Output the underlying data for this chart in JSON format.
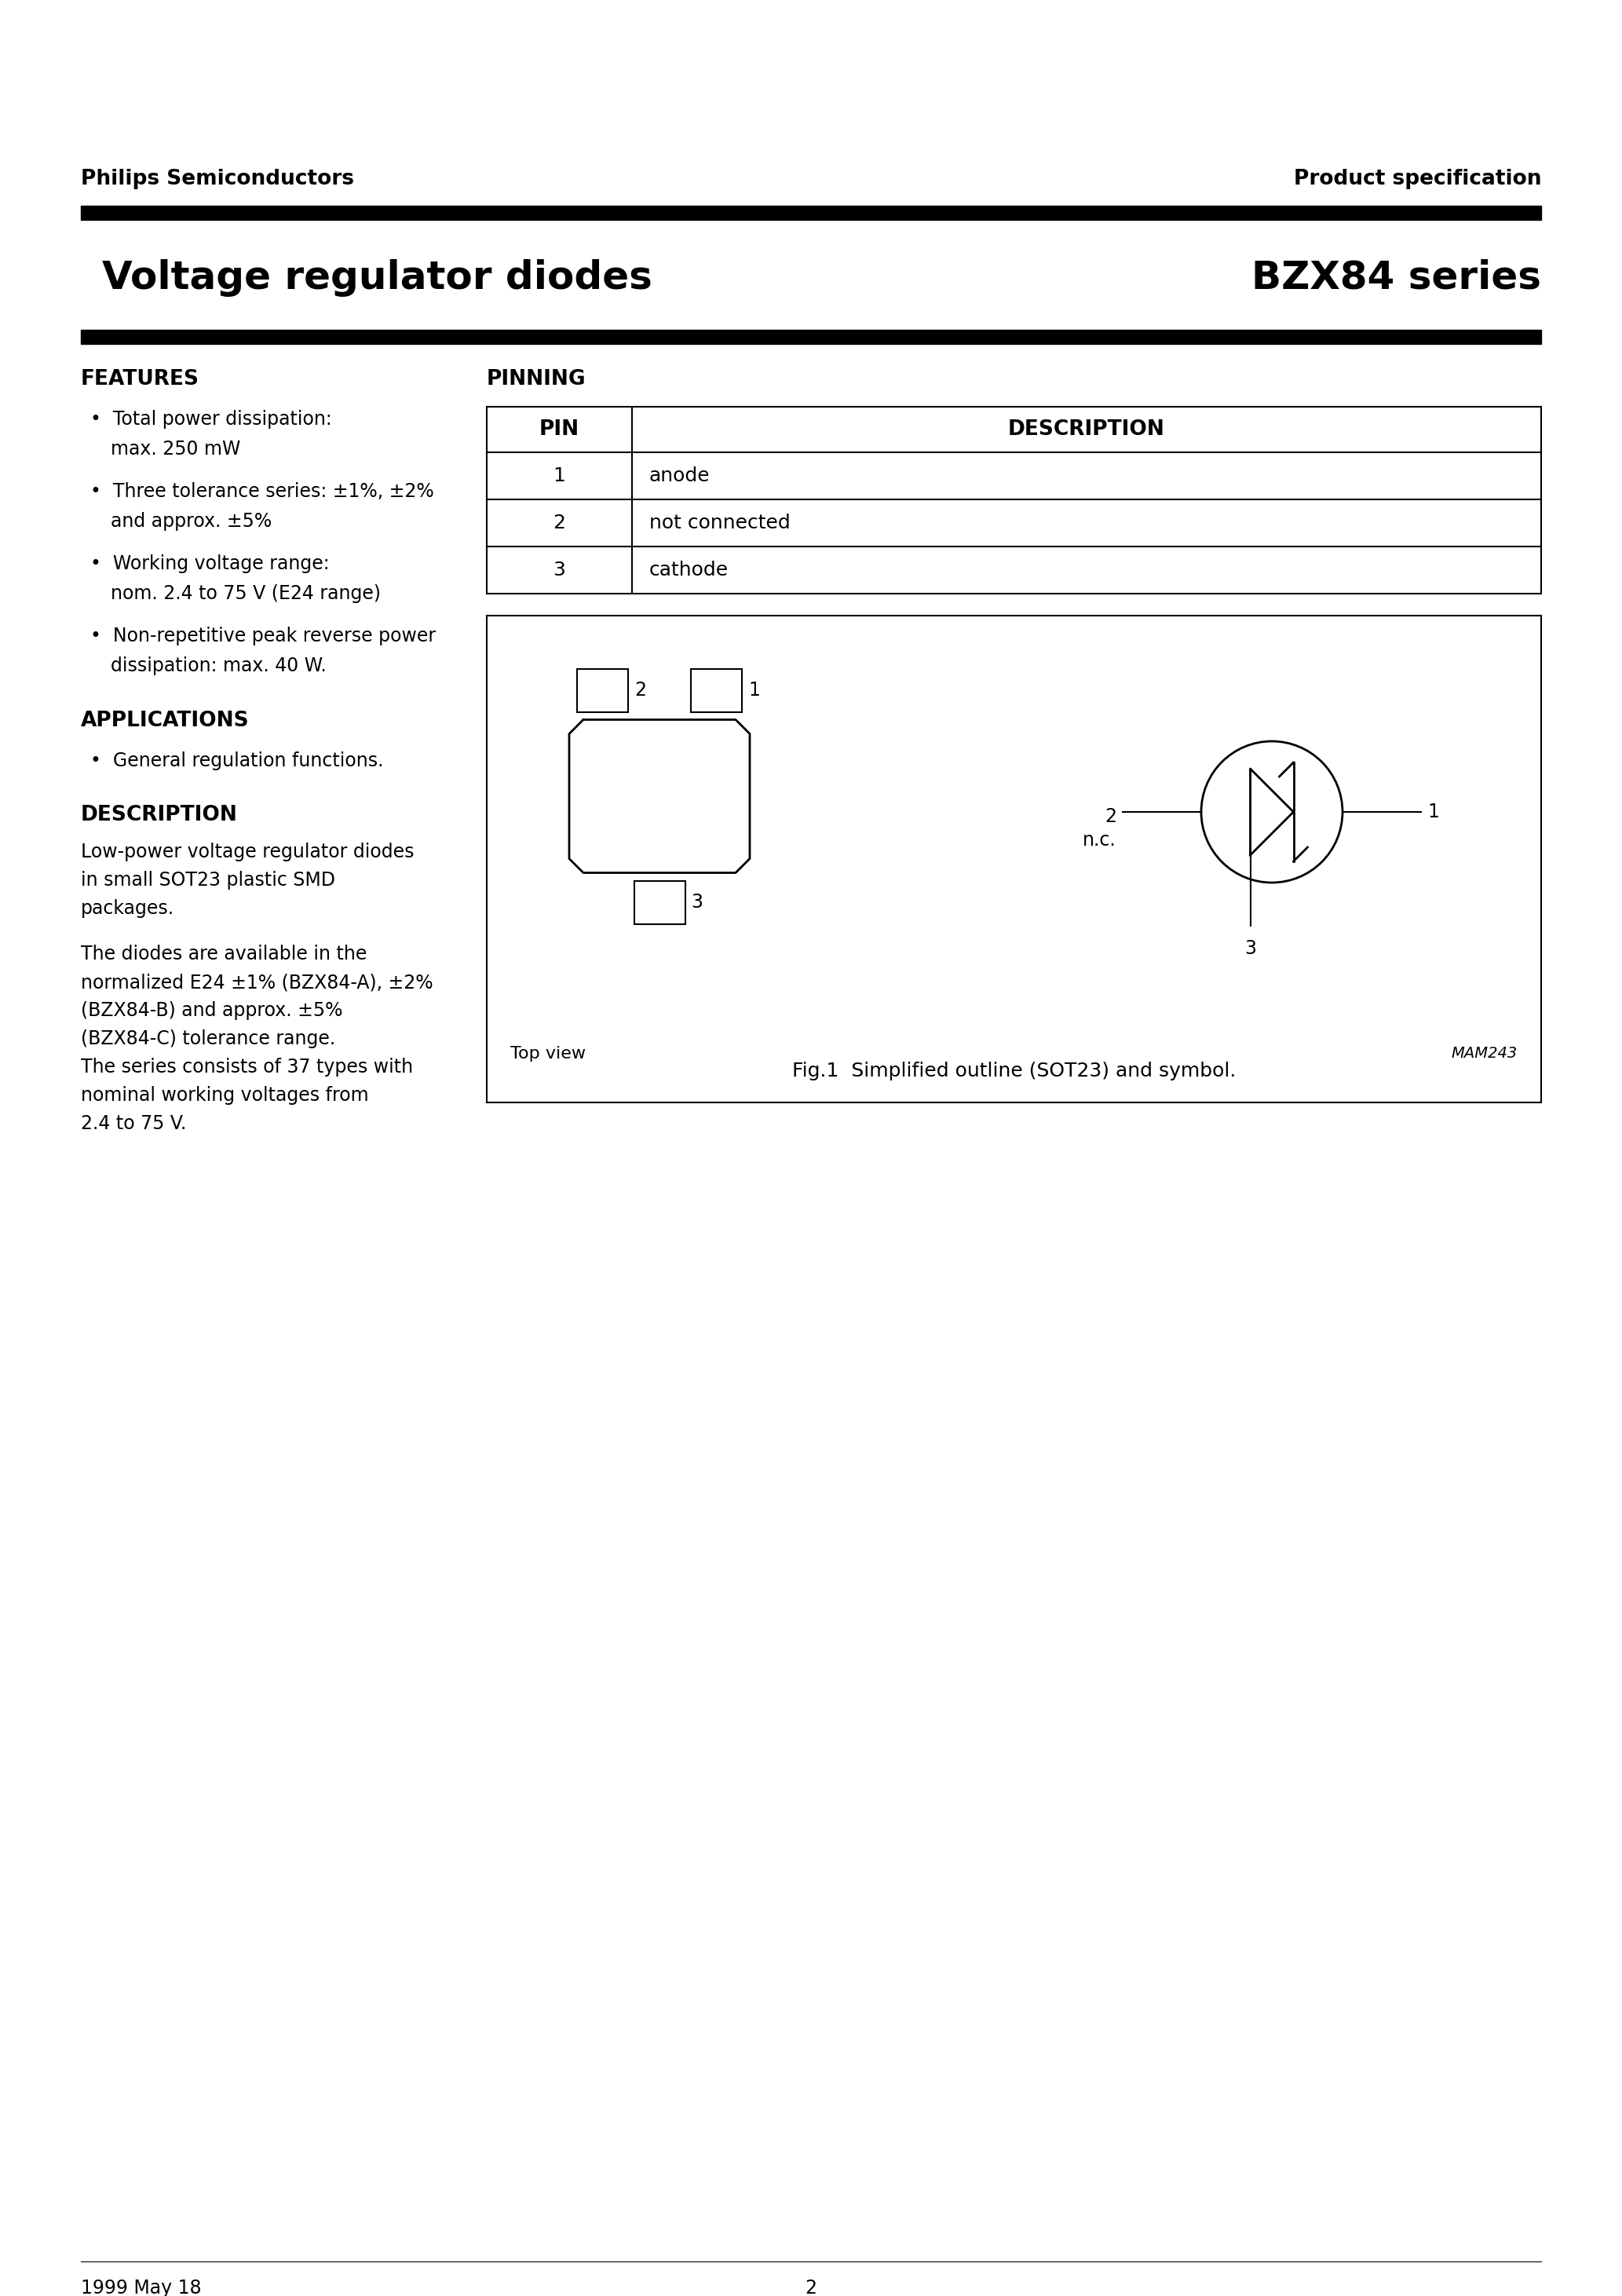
{
  "page_title_left": "Voltage regulator diodes",
  "page_title_right": "BZX84 series",
  "header_left": "Philips Semiconductors",
  "header_right": "Product specification",
  "features_title": "FEATURES",
  "features": [
    [
      "Total power dissipation:",
      "max. 250 mW"
    ],
    [
      "Three tolerance series: ±1%, ±2%",
      "and approx. ±5%"
    ],
    [
      "Working voltage range:",
      "nom. 2.4 to 75 V (E24 range)"
    ],
    [
      "Non-repetitive peak reverse power",
      "dissipation: max. 40 W."
    ]
  ],
  "applications_title": "APPLICATIONS",
  "applications": [
    "General regulation functions."
  ],
  "description_title": "DESCRIPTION",
  "desc_para1": [
    "Low-power voltage regulator diodes",
    "in small SOT23 plastic SMD",
    "packages."
  ],
  "desc_para2": [
    "The diodes are available in the",
    "normalized E24 ±1% (BZX84-A), ±2%",
    "(BZX84-B) and approx. ±5%",
    "(BZX84-C) tolerance range.",
    "The series consists of 37 types with",
    "nominal working voltages from",
    "2.4 to 75 V."
  ],
  "pinning_title": "PINNING",
  "pin_headers": [
    "PIN",
    "DESCRIPTION"
  ],
  "pins": [
    [
      "1",
      "anode"
    ],
    [
      "2",
      "not connected"
    ],
    [
      "3",
      "cathode"
    ]
  ],
  "fig_caption": "Fig.1  Simplified outline (SOT23) and symbol.",
  "top_view_label": "Top view",
  "mam_label": "MAM243",
  "footer_left": "1999 May 18",
  "footer_center": "2",
  "bg": "#ffffff"
}
